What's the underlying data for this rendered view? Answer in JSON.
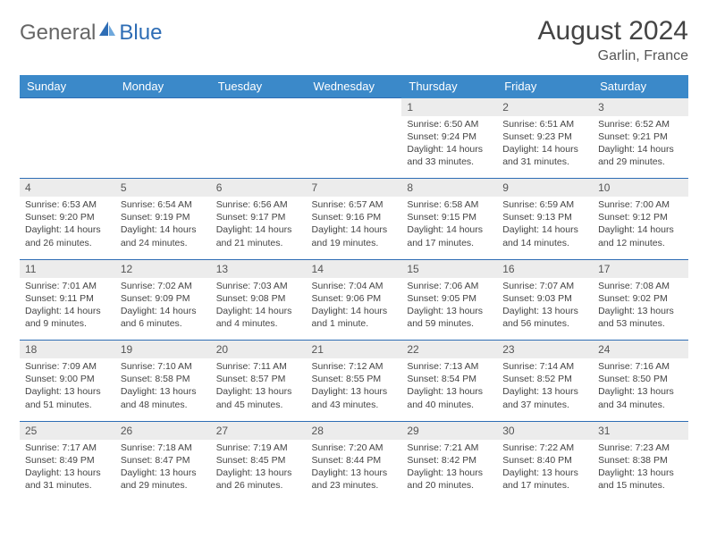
{
  "logo": {
    "text1": "General",
    "text2": "Blue"
  },
  "title": "August 2024",
  "location": "Garlin, France",
  "colors": {
    "header_bg": "#3b89c9",
    "header_text": "#ffffff",
    "daynum_bg": "#ececec",
    "border": "#2e6db5",
    "page_bg": "#ffffff"
  },
  "weekdays": [
    "Sunday",
    "Monday",
    "Tuesday",
    "Wednesday",
    "Thursday",
    "Friday",
    "Saturday"
  ],
  "weeks": [
    {
      "nums": [
        "",
        "",
        "",
        "",
        "1",
        "2",
        "3"
      ],
      "details": [
        null,
        null,
        null,
        null,
        {
          "sr": "Sunrise: 6:50 AM",
          "ss": "Sunset: 9:24 PM",
          "dl1": "Daylight: 14 hours",
          "dl2": "and 33 minutes."
        },
        {
          "sr": "Sunrise: 6:51 AM",
          "ss": "Sunset: 9:23 PM",
          "dl1": "Daylight: 14 hours",
          "dl2": "and 31 minutes."
        },
        {
          "sr": "Sunrise: 6:52 AM",
          "ss": "Sunset: 9:21 PM",
          "dl1": "Daylight: 14 hours",
          "dl2": "and 29 minutes."
        }
      ]
    },
    {
      "nums": [
        "4",
        "5",
        "6",
        "7",
        "8",
        "9",
        "10"
      ],
      "details": [
        {
          "sr": "Sunrise: 6:53 AM",
          "ss": "Sunset: 9:20 PM",
          "dl1": "Daylight: 14 hours",
          "dl2": "and 26 minutes."
        },
        {
          "sr": "Sunrise: 6:54 AM",
          "ss": "Sunset: 9:19 PM",
          "dl1": "Daylight: 14 hours",
          "dl2": "and 24 minutes."
        },
        {
          "sr": "Sunrise: 6:56 AM",
          "ss": "Sunset: 9:17 PM",
          "dl1": "Daylight: 14 hours",
          "dl2": "and 21 minutes."
        },
        {
          "sr": "Sunrise: 6:57 AM",
          "ss": "Sunset: 9:16 PM",
          "dl1": "Daylight: 14 hours",
          "dl2": "and 19 minutes."
        },
        {
          "sr": "Sunrise: 6:58 AM",
          "ss": "Sunset: 9:15 PM",
          "dl1": "Daylight: 14 hours",
          "dl2": "and 17 minutes."
        },
        {
          "sr": "Sunrise: 6:59 AM",
          "ss": "Sunset: 9:13 PM",
          "dl1": "Daylight: 14 hours",
          "dl2": "and 14 minutes."
        },
        {
          "sr": "Sunrise: 7:00 AM",
          "ss": "Sunset: 9:12 PM",
          "dl1": "Daylight: 14 hours",
          "dl2": "and 12 minutes."
        }
      ]
    },
    {
      "nums": [
        "11",
        "12",
        "13",
        "14",
        "15",
        "16",
        "17"
      ],
      "details": [
        {
          "sr": "Sunrise: 7:01 AM",
          "ss": "Sunset: 9:11 PM",
          "dl1": "Daylight: 14 hours",
          "dl2": "and 9 minutes."
        },
        {
          "sr": "Sunrise: 7:02 AM",
          "ss": "Sunset: 9:09 PM",
          "dl1": "Daylight: 14 hours",
          "dl2": "and 6 minutes."
        },
        {
          "sr": "Sunrise: 7:03 AM",
          "ss": "Sunset: 9:08 PM",
          "dl1": "Daylight: 14 hours",
          "dl2": "and 4 minutes."
        },
        {
          "sr": "Sunrise: 7:04 AM",
          "ss": "Sunset: 9:06 PM",
          "dl1": "Daylight: 14 hours",
          "dl2": "and 1 minute."
        },
        {
          "sr": "Sunrise: 7:06 AM",
          "ss": "Sunset: 9:05 PM",
          "dl1": "Daylight: 13 hours",
          "dl2": "and 59 minutes."
        },
        {
          "sr": "Sunrise: 7:07 AM",
          "ss": "Sunset: 9:03 PM",
          "dl1": "Daylight: 13 hours",
          "dl2": "and 56 minutes."
        },
        {
          "sr": "Sunrise: 7:08 AM",
          "ss": "Sunset: 9:02 PM",
          "dl1": "Daylight: 13 hours",
          "dl2": "and 53 minutes."
        }
      ]
    },
    {
      "nums": [
        "18",
        "19",
        "20",
        "21",
        "22",
        "23",
        "24"
      ],
      "details": [
        {
          "sr": "Sunrise: 7:09 AM",
          "ss": "Sunset: 9:00 PM",
          "dl1": "Daylight: 13 hours",
          "dl2": "and 51 minutes."
        },
        {
          "sr": "Sunrise: 7:10 AM",
          "ss": "Sunset: 8:58 PM",
          "dl1": "Daylight: 13 hours",
          "dl2": "and 48 minutes."
        },
        {
          "sr": "Sunrise: 7:11 AM",
          "ss": "Sunset: 8:57 PM",
          "dl1": "Daylight: 13 hours",
          "dl2": "and 45 minutes."
        },
        {
          "sr": "Sunrise: 7:12 AM",
          "ss": "Sunset: 8:55 PM",
          "dl1": "Daylight: 13 hours",
          "dl2": "and 43 minutes."
        },
        {
          "sr": "Sunrise: 7:13 AM",
          "ss": "Sunset: 8:54 PM",
          "dl1": "Daylight: 13 hours",
          "dl2": "and 40 minutes."
        },
        {
          "sr": "Sunrise: 7:14 AM",
          "ss": "Sunset: 8:52 PM",
          "dl1": "Daylight: 13 hours",
          "dl2": "and 37 minutes."
        },
        {
          "sr": "Sunrise: 7:16 AM",
          "ss": "Sunset: 8:50 PM",
          "dl1": "Daylight: 13 hours",
          "dl2": "and 34 minutes."
        }
      ]
    },
    {
      "nums": [
        "25",
        "26",
        "27",
        "28",
        "29",
        "30",
        "31"
      ],
      "details": [
        {
          "sr": "Sunrise: 7:17 AM",
          "ss": "Sunset: 8:49 PM",
          "dl1": "Daylight: 13 hours",
          "dl2": "and 31 minutes."
        },
        {
          "sr": "Sunrise: 7:18 AM",
          "ss": "Sunset: 8:47 PM",
          "dl1": "Daylight: 13 hours",
          "dl2": "and 29 minutes."
        },
        {
          "sr": "Sunrise: 7:19 AM",
          "ss": "Sunset: 8:45 PM",
          "dl1": "Daylight: 13 hours",
          "dl2": "and 26 minutes."
        },
        {
          "sr": "Sunrise: 7:20 AM",
          "ss": "Sunset: 8:44 PM",
          "dl1": "Daylight: 13 hours",
          "dl2": "and 23 minutes."
        },
        {
          "sr": "Sunrise: 7:21 AM",
          "ss": "Sunset: 8:42 PM",
          "dl1": "Daylight: 13 hours",
          "dl2": "and 20 minutes."
        },
        {
          "sr": "Sunrise: 7:22 AM",
          "ss": "Sunset: 8:40 PM",
          "dl1": "Daylight: 13 hours",
          "dl2": "and 17 minutes."
        },
        {
          "sr": "Sunrise: 7:23 AM",
          "ss": "Sunset: 8:38 PM",
          "dl1": "Daylight: 13 hours",
          "dl2": "and 15 minutes."
        }
      ]
    }
  ]
}
